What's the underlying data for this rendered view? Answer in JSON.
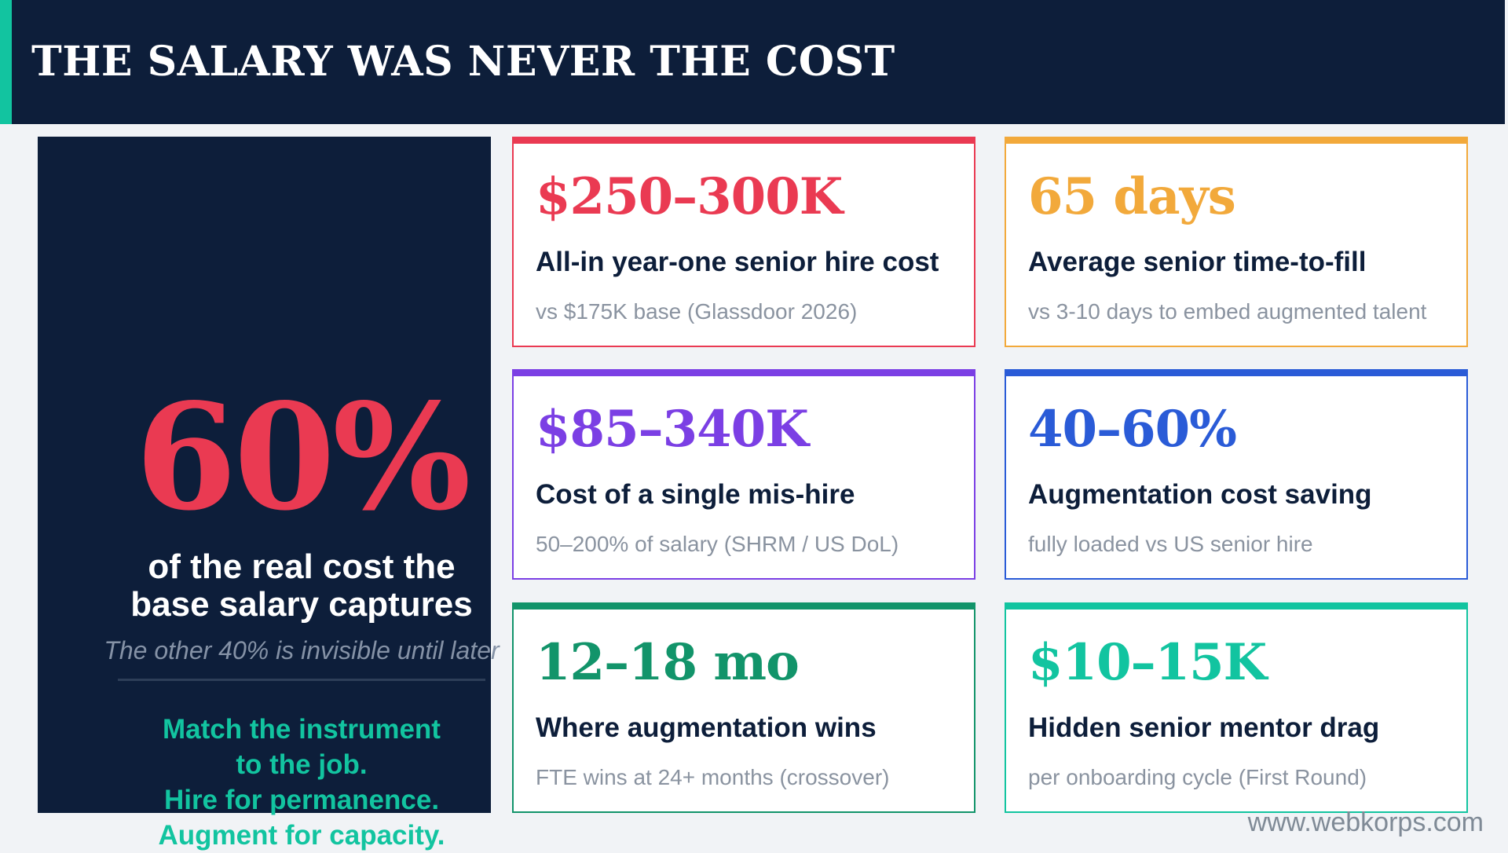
{
  "header": {
    "title": "THE SALARY WAS NEVER THE COST",
    "accent_color": "#12c4a0",
    "background_color": "#0d1e3a"
  },
  "left_panel": {
    "stat": "60%",
    "caption_line1": "of the real cost the",
    "caption_line2": "base salary captures",
    "subcaption": "The other 40% is invisible until later",
    "tagline": [
      "Match the instrument",
      "to the job.",
      "Hire for permanence.",
      "Augment for capacity."
    ],
    "stat_color": "#ea3a52",
    "tagline_color": "#12c4a0"
  },
  "cards": [
    {
      "value": "$250–300K",
      "label": "All-in year-one senior hire cost",
      "note": "vs $175K base (Glassdoor 2026)",
      "color": "#ea3a52"
    },
    {
      "value": "65 days",
      "label": "Average senior time-to-fill",
      "note": "vs 3-10 days to embed augmented talent",
      "color": "#f2a93b"
    },
    {
      "value": "$85–340K",
      "label": "Cost of a single mis-hire",
      "note": "50–200% of salary (SHRM / US DoL)",
      "color": "#7b3fe4"
    },
    {
      "value": "40–60%",
      "label": "Augmentation cost saving",
      "note": "fully loaded vs US senior hire",
      "color": "#2a5bd7"
    },
    {
      "value": "12–18 mo",
      "label": "Where augmentation wins",
      "note": "FTE wins at 24+ months (crossover)",
      "color": "#12946a"
    },
    {
      "value": "$10–15K",
      "label": "Hidden senior mentor drag",
      "note": "per onboarding cycle (First Round)",
      "color": "#12c4a0"
    }
  ],
  "footer": {
    "url": "www.webkorps.com"
  }
}
